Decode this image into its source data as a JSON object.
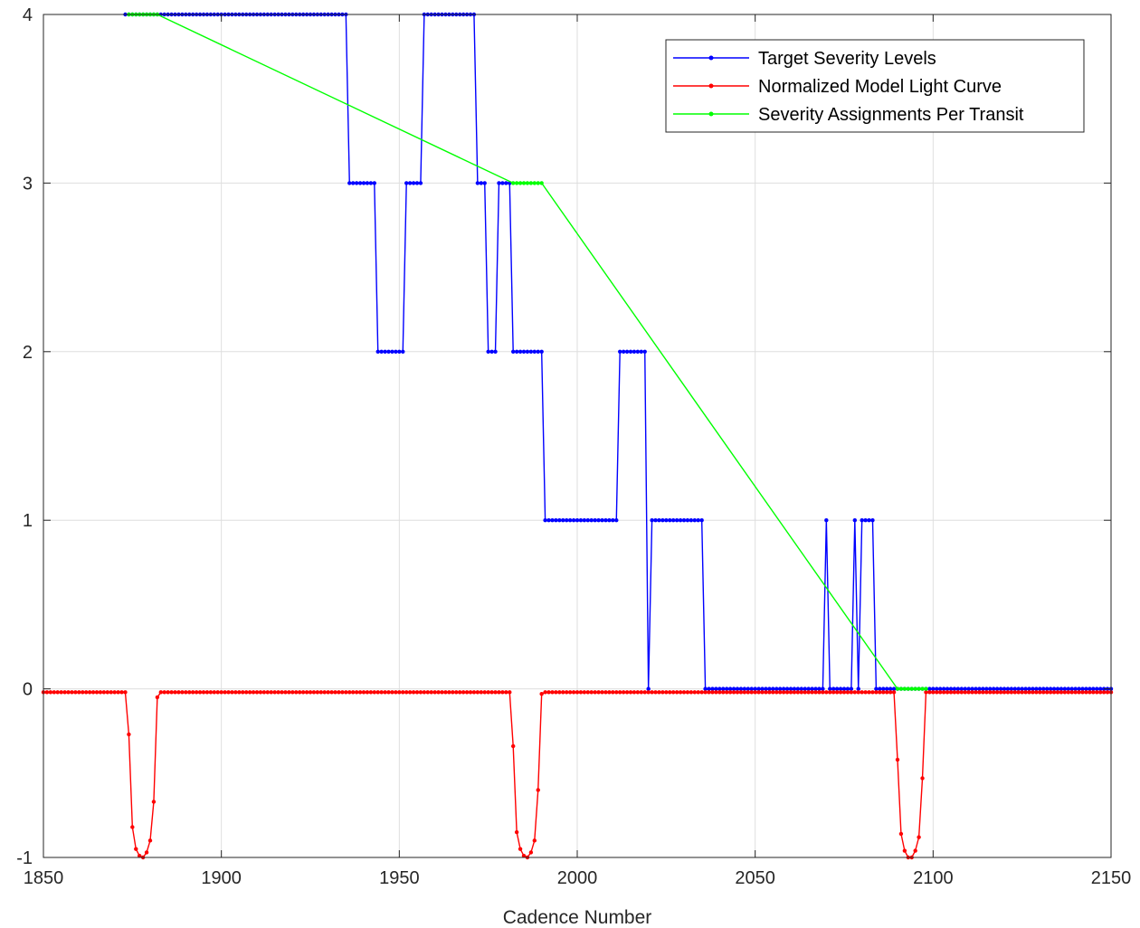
{
  "chart_data": {
    "type": "line",
    "title": "",
    "xlabel": "Cadence Number",
    "ylabel": "",
    "xlim": [
      1850,
      2150
    ],
    "ylim": [
      -1,
      4
    ],
    "xticks": [
      1850,
      1900,
      1950,
      2000,
      2050,
      2100,
      2150
    ],
    "yticks": [
      -1,
      0,
      1,
      2,
      3,
      4
    ],
    "grid": true,
    "legend_position": "top-right",
    "series": [
      {
        "name": "Target Severity Levels",
        "color": "#0000ff",
        "marker": "dot",
        "segments": [
          [
            1873,
            1935,
            4
          ],
          [
            1936,
            1943,
            3
          ],
          [
            1944,
            1951,
            2
          ],
          [
            1952,
            1956,
            3
          ],
          [
            1957,
            1971,
            4
          ],
          [
            1972,
            1974,
            3
          ],
          [
            1975,
            1977,
            2
          ],
          [
            1978,
            1981,
            3
          ],
          [
            1982,
            1990,
            2
          ],
          [
            1991,
            2011,
            1
          ],
          [
            2012,
            2019,
            2
          ],
          [
            2020,
            2020,
            0
          ],
          [
            2021,
            2035,
            1
          ],
          [
            2036,
            2069,
            0
          ],
          [
            2070,
            2070,
            1
          ],
          [
            2071,
            2077,
            0
          ],
          [
            2078,
            2078,
            1
          ],
          [
            2079,
            2079,
            0
          ],
          [
            2080,
            2083,
            1
          ],
          [
            2084,
            2150,
            0
          ]
        ]
      },
      {
        "name": "Normalized Model Light Curve",
        "color": "#ff0000",
        "marker": "dot",
        "baseline": -0.02,
        "x_start": 1850,
        "x_end": 2150,
        "dips": [
          [
            1874,
            -0.27
          ],
          [
            1875,
            -0.82
          ],
          [
            1876,
            -0.95
          ],
          [
            1877,
            -0.99
          ],
          [
            1878,
            -1.0
          ],
          [
            1879,
            -0.97
          ],
          [
            1880,
            -0.9
          ],
          [
            1881,
            -0.67
          ],
          [
            1882,
            -0.05
          ],
          [
            1982,
            -0.34
          ],
          [
            1983,
            -0.85
          ],
          [
            1984,
            -0.95
          ],
          [
            1985,
            -0.99
          ],
          [
            1986,
            -1.0
          ],
          [
            1987,
            -0.97
          ],
          [
            1988,
            -0.9
          ],
          [
            1989,
            -0.6
          ],
          [
            1990,
            -0.03
          ],
          [
            2090,
            -0.42
          ],
          [
            2091,
            -0.86
          ],
          [
            2092,
            -0.96
          ],
          [
            2093,
            -1.0
          ],
          [
            2094,
            -1.0
          ],
          [
            2095,
            -0.96
          ],
          [
            2096,
            -0.88
          ],
          [
            2097,
            -0.53
          ],
          [
            2098,
            -0.02
          ]
        ]
      },
      {
        "name": "Severity Assignments Per Transit",
        "color": "#00ff00",
        "marker": "dot",
        "segments": [
          [
            1874,
            1882,
            4
          ],
          [
            1982,
            1990,
            3
          ],
          [
            2090,
            2098,
            0
          ]
        ]
      }
    ]
  }
}
